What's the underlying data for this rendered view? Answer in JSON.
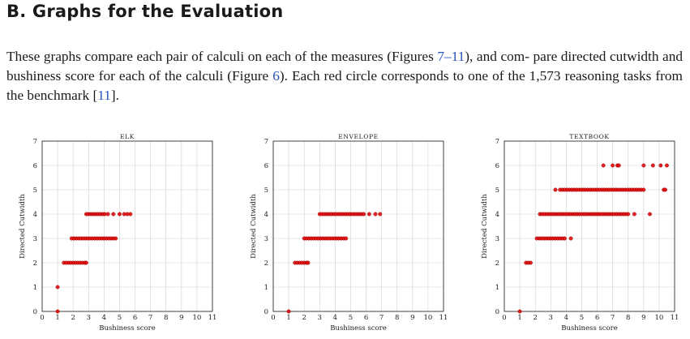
{
  "section": {
    "heading": "B.  Graphs for the Evaluation"
  },
  "intro": {
    "p1": "These graphs compare each pair of calculi on each of the measures (Figures ",
    "ref_fig_range": "7–11",
    "p2": "), and com- pare directed cutwidth and bushiness score for each of the calculi (Figure ",
    "ref_fig": "6",
    "p3": "). Each red circle corresponds to one of the 1,573 reasoning tasks from the benchmark [",
    "ref_cite": "11",
    "p4": "]."
  },
  "colors": {
    "marker": "#e00000",
    "grid": "#cfcfcf",
    "axis": "#1a1a1a",
    "link": "#2a55b8"
  },
  "chart_data": [
    {
      "type": "scatter",
      "title": "Elk",
      "xlabel": "Bushiness score",
      "ylabel": "Directed Cutwidth",
      "xlim": [
        0,
        11
      ],
      "ylim": [
        0,
        7
      ],
      "x_ticks": [
        "0",
        "1",
        "2",
        "3",
        "4",
        "5",
        "6",
        "7",
        "8",
        "9",
        "10",
        "11"
      ],
      "y_ticks": [
        "0",
        "1",
        "2",
        "3",
        "4",
        "5",
        "6",
        "7"
      ],
      "grid": true,
      "series": [
        {
          "points": [
            [
              1,
              0
            ],
            [
              1,
              1
            ],
            [
              1.4,
              2
            ],
            [
              1.55,
              2
            ],
            [
              1.7,
              2
            ],
            [
              1.85,
              2
            ],
            [
              2.0,
              2
            ],
            [
              2.15,
              2
            ],
            [
              2.3,
              2
            ],
            [
              2.45,
              2
            ],
            [
              2.6,
              2
            ],
            [
              2.75,
              2
            ],
            [
              2.85,
              2
            ],
            [
              1.9,
              3
            ],
            [
              2.05,
              3
            ],
            [
              2.2,
              3
            ],
            [
              2.35,
              3
            ],
            [
              2.5,
              3
            ],
            [
              2.65,
              3
            ],
            [
              2.8,
              3
            ],
            [
              2.95,
              3
            ],
            [
              3.1,
              3
            ],
            [
              3.25,
              3
            ],
            [
              3.4,
              3
            ],
            [
              3.55,
              3
            ],
            [
              3.7,
              3
            ],
            [
              3.85,
              3
            ],
            [
              4.0,
              3
            ],
            [
              4.15,
              3
            ],
            [
              4.3,
              3
            ],
            [
              4.45,
              3
            ],
            [
              4.6,
              3
            ],
            [
              4.75,
              3
            ],
            [
              2.85,
              4
            ],
            [
              3.0,
              4
            ],
            [
              3.15,
              4
            ],
            [
              3.3,
              4
            ],
            [
              3.45,
              4
            ],
            [
              3.6,
              4
            ],
            [
              3.75,
              4
            ],
            [
              3.9,
              4
            ],
            [
              4.05,
              4
            ],
            [
              4.25,
              4
            ],
            [
              4.6,
              4
            ],
            [
              5.0,
              4
            ],
            [
              5.3,
              4
            ],
            [
              5.5,
              4
            ],
            [
              5.7,
              4
            ]
          ]
        }
      ]
    },
    {
      "type": "scatter",
      "title": "Envelope",
      "xlabel": "Bushiness score",
      "ylabel": "Directed Cutwidth",
      "xlim": [
        0,
        11
      ],
      "ylim": [
        0,
        7
      ],
      "x_ticks": [
        "0",
        "1",
        "2",
        "3",
        "4",
        "5",
        "6",
        "7",
        "8",
        "9",
        "10",
        "11"
      ],
      "y_ticks": [
        "0",
        "1",
        "2",
        "3",
        "4",
        "5",
        "6",
        "7"
      ],
      "grid": true,
      "series": [
        {
          "points": [
            [
              1,
              0
            ],
            [
              1.4,
              2
            ],
            [
              1.55,
              2
            ],
            [
              1.7,
              2
            ],
            [
              1.85,
              2
            ],
            [
              2.0,
              2
            ],
            [
              2.15,
              2
            ],
            [
              2.25,
              2
            ],
            [
              2.0,
              3
            ],
            [
              2.15,
              3
            ],
            [
              2.3,
              3
            ],
            [
              2.45,
              3
            ],
            [
              2.6,
              3
            ],
            [
              2.75,
              3
            ],
            [
              2.9,
              3
            ],
            [
              3.05,
              3
            ],
            [
              3.2,
              3
            ],
            [
              3.35,
              3
            ],
            [
              3.5,
              3
            ],
            [
              3.65,
              3
            ],
            [
              3.8,
              3
            ],
            [
              3.95,
              3
            ],
            [
              4.1,
              3
            ],
            [
              4.25,
              3
            ],
            [
              4.4,
              3
            ],
            [
              4.55,
              3
            ],
            [
              4.7,
              3
            ],
            [
              3.0,
              4
            ],
            [
              3.15,
              4
            ],
            [
              3.3,
              4
            ],
            [
              3.45,
              4
            ],
            [
              3.6,
              4
            ],
            [
              3.75,
              4
            ],
            [
              3.9,
              4
            ],
            [
              4.05,
              4
            ],
            [
              4.2,
              4
            ],
            [
              4.35,
              4
            ],
            [
              4.5,
              4
            ],
            [
              4.65,
              4
            ],
            [
              4.8,
              4
            ],
            [
              4.95,
              4
            ],
            [
              5.1,
              4
            ],
            [
              5.25,
              4
            ],
            [
              5.4,
              4
            ],
            [
              5.55,
              4
            ],
            [
              5.7,
              4
            ],
            [
              5.85,
              4
            ],
            [
              6.2,
              4
            ],
            [
              6.6,
              4
            ],
            [
              6.9,
              4
            ]
          ]
        }
      ]
    },
    {
      "type": "scatter",
      "title": "Textbook",
      "xlabel": "Bushiness score",
      "ylabel": "Directed Cutwidth",
      "xlim": [
        0,
        11
      ],
      "ylim": [
        0,
        7
      ],
      "x_ticks": [
        "0",
        "1",
        "2",
        "3",
        "4",
        "5",
        "6",
        "7",
        "8",
        "9",
        "10",
        "11"
      ],
      "y_ticks": [
        "0",
        "1",
        "2",
        "3",
        "4",
        "5",
        "6",
        "7"
      ],
      "grid": true,
      "series": [
        {
          "points": [
            [
              1,
              0
            ],
            [
              1.4,
              2
            ],
            [
              1.55,
              2
            ],
            [
              1.7,
              2
            ],
            [
              2.1,
              3
            ],
            [
              2.25,
              3
            ],
            [
              2.4,
              3
            ],
            [
              2.55,
              3
            ],
            [
              2.7,
              3
            ],
            [
              2.85,
              3
            ],
            [
              3.0,
              3
            ],
            [
              3.15,
              3
            ],
            [
              3.3,
              3
            ],
            [
              3.45,
              3
            ],
            [
              3.6,
              3
            ],
            [
              3.75,
              3
            ],
            [
              3.9,
              3
            ],
            [
              4.3,
              3
            ],
            [
              2.3,
              4
            ],
            [
              2.45,
              4
            ],
            [
              2.6,
              4
            ],
            [
              2.75,
              4
            ],
            [
              2.9,
              4
            ],
            [
              3.05,
              4
            ],
            [
              3.2,
              4
            ],
            [
              3.35,
              4
            ],
            [
              3.5,
              4
            ],
            [
              3.65,
              4
            ],
            [
              3.8,
              4
            ],
            [
              3.95,
              4
            ],
            [
              4.1,
              4
            ],
            [
              4.25,
              4
            ],
            [
              4.4,
              4
            ],
            [
              4.55,
              4
            ],
            [
              4.7,
              4
            ],
            [
              4.85,
              4
            ],
            [
              5.0,
              4
            ],
            [
              5.15,
              4
            ],
            [
              5.3,
              4
            ],
            [
              5.45,
              4
            ],
            [
              5.6,
              4
            ],
            [
              5.75,
              4
            ],
            [
              5.9,
              4
            ],
            [
              6.05,
              4
            ],
            [
              6.2,
              4
            ],
            [
              6.35,
              4
            ],
            [
              6.5,
              4
            ],
            [
              6.65,
              4
            ],
            [
              6.8,
              4
            ],
            [
              6.95,
              4
            ],
            [
              7.1,
              4
            ],
            [
              7.25,
              4
            ],
            [
              7.4,
              4
            ],
            [
              7.55,
              4
            ],
            [
              7.7,
              4
            ],
            [
              7.85,
              4
            ],
            [
              8.0,
              4
            ],
            [
              8.4,
              4
            ],
            [
              9.4,
              4
            ],
            [
              3.3,
              5
            ],
            [
              3.6,
              5
            ],
            [
              3.75,
              5
            ],
            [
              3.9,
              5
            ],
            [
              4.05,
              5
            ],
            [
              4.2,
              5
            ],
            [
              4.35,
              5
            ],
            [
              4.5,
              5
            ],
            [
              4.65,
              5
            ],
            [
              4.8,
              5
            ],
            [
              4.95,
              5
            ],
            [
              5.1,
              5
            ],
            [
              5.25,
              5
            ],
            [
              5.4,
              5
            ],
            [
              5.55,
              5
            ],
            [
              5.7,
              5
            ],
            [
              5.85,
              5
            ],
            [
              6.0,
              5
            ],
            [
              6.15,
              5
            ],
            [
              6.3,
              5
            ],
            [
              6.45,
              5
            ],
            [
              6.6,
              5
            ],
            [
              6.75,
              5
            ],
            [
              6.9,
              5
            ],
            [
              7.05,
              5
            ],
            [
              7.2,
              5
            ],
            [
              7.35,
              5
            ],
            [
              7.5,
              5
            ],
            [
              7.65,
              5
            ],
            [
              7.8,
              5
            ],
            [
              7.95,
              5
            ],
            [
              8.1,
              5
            ],
            [
              8.25,
              5
            ],
            [
              8.4,
              5
            ],
            [
              8.55,
              5
            ],
            [
              8.7,
              5
            ],
            [
              8.85,
              5
            ],
            [
              9.0,
              5
            ],
            [
              10.3,
              5
            ],
            [
              10.4,
              5
            ],
            [
              6.4,
              6
            ],
            [
              7.0,
              6
            ],
            [
              7.3,
              6
            ],
            [
              7.4,
              6
            ],
            [
              9.0,
              6
            ],
            [
              9.6,
              6
            ],
            [
              10.1,
              6
            ],
            [
              10.5,
              6
            ]
          ]
        }
      ]
    }
  ]
}
